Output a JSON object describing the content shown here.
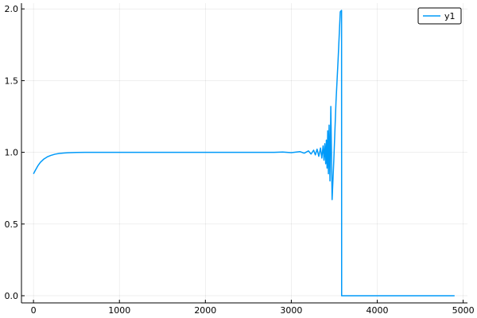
{
  "chart_data": {
    "type": "line",
    "title": "",
    "xlabel": "",
    "ylabel": "",
    "xlim": [
      -140,
      5050
    ],
    "ylim": [
      -0.05,
      2.04
    ],
    "xticks": [
      0,
      1000,
      2000,
      3000,
      4000,
      5000
    ],
    "xtick_labels": [
      "0",
      "1000",
      "2000",
      "3000",
      "4000",
      "5000"
    ],
    "yticks": [
      0.0,
      0.5,
      1.0,
      1.5,
      2.0
    ],
    "ytick_labels": [
      "0.0",
      "0.5",
      "1.0",
      "1.5",
      "2.0"
    ],
    "grid": true,
    "legend_position": "top-right",
    "series": [
      {
        "name": "y1",
        "color": "#009af9",
        "x": [
          0,
          20,
          50,
          80,
          120,
          160,
          200,
          250,
          300,
          350,
          400,
          500,
          600,
          800,
          1000,
          2000,
          2800,
          2900,
          3000,
          3100,
          3150,
          3200,
          3230,
          3260,
          3280,
          3300,
          3320,
          3340,
          3355,
          3370,
          3380,
          3390,
          3400,
          3408,
          3416,
          3424,
          3432,
          3440,
          3450,
          3460,
          3475,
          3495,
          3520,
          3545,
          3570,
          3585,
          3586,
          3600,
          3700,
          3800,
          3900,
          4000,
          4200,
          4400,
          4600,
          4800,
          4900
        ],
        "y": [
          0.85,
          0.873,
          0.905,
          0.93,
          0.953,
          0.968,
          0.978,
          0.987,
          0.992,
          0.995,
          0.997,
          0.999,
          1.0,
          1.0,
          1.0,
          1.0,
          1.0,
          1.002,
          0.998,
          1.005,
          0.994,
          1.01,
          0.988,
          1.015,
          0.982,
          1.022,
          0.972,
          1.03,
          0.96,
          1.045,
          0.945,
          1.06,
          0.92,
          1.085,
          0.89,
          1.15,
          0.85,
          1.19,
          0.8,
          1.32,
          0.67,
          0.95,
          1.35,
          1.65,
          1.98,
          1.99,
          0.0,
          0.0,
          0.0,
          0.0,
          0.0,
          0.0,
          0.0,
          0.0,
          0.0,
          0.0,
          0.0
        ]
      }
    ]
  }
}
